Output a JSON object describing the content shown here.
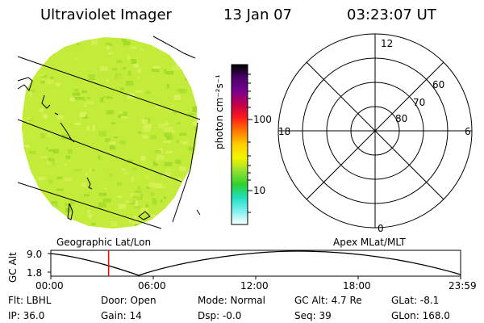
{
  "header": {
    "instrument": "Ultraviolet Imager",
    "date": "13 Jan 07",
    "time": "03:23:07 UT"
  },
  "colors": {
    "image_fill": "#c3ec3a",
    "image_light": "#dcf25e",
    "image_dark": "#9ed828",
    "marker": "#ff0000",
    "line": "#000000"
  },
  "colorbar": {
    "unit_label": "photon cm⁻²s⁻¹",
    "tick_high": "100",
    "tick_low": "10",
    "stops": [
      "#000000",
      "#4a006a",
      "#7a0090",
      "#c0004a",
      "#ff1a1a",
      "#ff7a00",
      "#ffd000",
      "#f4f400",
      "#90e030",
      "#30d030",
      "#20e0c0",
      "#80f0f0",
      "#ffffff"
    ]
  },
  "polar_plot": {
    "mlt_top": "12",
    "mlt_left": "18",
    "mlt_right": "6",
    "mlt_bottom": "0",
    "lat_60": "60",
    "lat_70": "70",
    "lat_80": "80"
  },
  "panel_labels": {
    "left": "Geographic Lat/Lon",
    "right": "Apex MLat/MLT"
  },
  "altitude_plot": {
    "axis_title": "GC Alt",
    "y_top": "9.0",
    "y_bottom": "1.8",
    "x_ticks": [
      "00:00",
      "06:00",
      "12:00",
      "18:00",
      "23:59"
    ],
    "current_time_fraction": 0.141
  },
  "status": {
    "filter": "Flt: LBHL",
    "ip": "IP: 36.0",
    "door": "Door: Open",
    "gain": "Gain: 14",
    "mode": "Mode: Normal",
    "dsp": "Dsp:   -0.0",
    "gc_alt": "GC Alt: 4.7 Re",
    "seq": "Seq: 39",
    "glat": "GLat:   -8.1",
    "glon": "GLon: 168.0"
  }
}
